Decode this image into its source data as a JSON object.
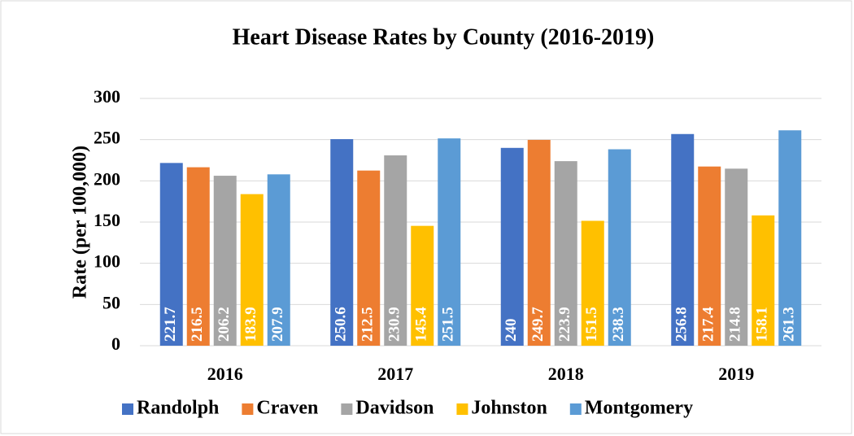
{
  "chart_data": {
    "type": "bar",
    "title": "Heart Disease Rates by County (2016-2019)",
    "ylabel": "Rate (per 100,000)",
    "categories": [
      "2016",
      "2017",
      "2018",
      "2019"
    ],
    "series": [
      {
        "name": "Randolph",
        "color": "#4472c4",
        "values": [
          221.7,
          250.6,
          240,
          256.8
        ]
      },
      {
        "name": "Craven",
        "color": "#ed7d31",
        "values": [
          216.5,
          212.5,
          249.7,
          217.4
        ]
      },
      {
        "name": "Davidson",
        "color": "#a5a5a5",
        "values": [
          206.2,
          230.9,
          223.9,
          214.8
        ]
      },
      {
        "name": "Johnston",
        "color": "#ffc000",
        "values": [
          183.9,
          145.4,
          151.5,
          158.1
        ]
      },
      {
        "name": "Montgomery",
        "color": "#5b9bd5",
        "values": [
          207.9,
          251.5,
          238.3,
          261.3
        ]
      }
    ],
    "ylim": [
      0,
      300
    ],
    "yticks": [
      0,
      50,
      100,
      150,
      200,
      250,
      300
    ],
    "grid": true,
    "legend": "bottom"
  }
}
